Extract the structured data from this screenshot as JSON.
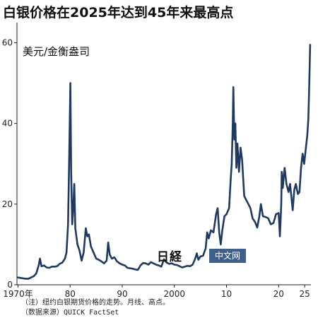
{
  "chart_data": {
    "type": "line",
    "title": "白银价格在2025年达到45年来最高点",
    "ylabel": "美元/金衡盎司",
    "xlabel": "",
    "ylim": [
      0,
      65
    ],
    "xlim": [
      1969.8,
      2026.2
    ],
    "yticks": [
      0,
      20,
      40,
      60
    ],
    "xticks": [
      {
        "value": 1970,
        "label": "1970年"
      },
      {
        "value": 1980,
        "label": "80"
      },
      {
        "value": 1990,
        "label": "90"
      },
      {
        "value": 2000,
        "label": "2000"
      },
      {
        "value": 2010,
        "label": "10"
      },
      {
        "value": 2020,
        "label": "20"
      },
      {
        "value": 2025,
        "label": "25"
      }
    ],
    "grid": false,
    "legend": "none",
    "series": [
      {
        "color": "#1e3a64",
        "points": [
          [
            1970.0,
            1.8
          ],
          [
            1970.5,
            1.7
          ],
          [
            1971.0,
            1.6
          ],
          [
            1971.5,
            1.5
          ],
          [
            1972.0,
            1.5
          ],
          [
            1972.5,
            1.8
          ],
          [
            1973.0,
            2.1
          ],
          [
            1973.5,
            2.8
          ],
          [
            1974.0,
            5.0
          ],
          [
            1974.2,
            6.5
          ],
          [
            1974.5,
            4.6
          ],
          [
            1975.0,
            4.8
          ],
          [
            1975.5,
            4.3
          ],
          [
            1976.0,
            4.2
          ],
          [
            1976.5,
            4.5
          ],
          [
            1977.0,
            4.5
          ],
          [
            1977.5,
            4.6
          ],
          [
            1978.0,
            5.2
          ],
          [
            1978.5,
            5.5
          ],
          [
            1979.0,
            6.5
          ],
          [
            1979.3,
            8.0
          ],
          [
            1979.6,
            15.0
          ],
          [
            1979.8,
            30.0
          ],
          [
            1980.05,
            50.0
          ],
          [
            1980.2,
            28.0
          ],
          [
            1980.4,
            15.0
          ],
          [
            1980.6,
            19.0
          ],
          [
            1980.8,
            25.0
          ],
          [
            1981.0,
            14.0
          ],
          [
            1981.4,
            10.0
          ],
          [
            1981.8,
            8.5
          ],
          [
            1982.2,
            6.0
          ],
          [
            1982.6,
            8.0
          ],
          [
            1983.0,
            14.0
          ],
          [
            1983.3,
            12.0
          ],
          [
            1983.6,
            12.5
          ],
          [
            1984.0,
            9.5
          ],
          [
            1984.5,
            8.0
          ],
          [
            1985.0,
            6.5
          ],
          [
            1985.5,
            6.2
          ],
          [
            1986.0,
            5.8
          ],
          [
            1986.5,
            5.3
          ],
          [
            1987.0,
            6.0
          ],
          [
            1987.3,
            10.5
          ],
          [
            1987.6,
            7.5
          ],
          [
            1988.0,
            6.5
          ],
          [
            1988.5,
            6.8
          ],
          [
            1989.0,
            5.8
          ],
          [
            1989.5,
            5.3
          ],
          [
            1990.0,
            5.0
          ],
          [
            1990.5,
            4.8
          ],
          [
            1991.0,
            4.2
          ],
          [
            1991.5,
            4.1
          ],
          [
            1992.0,
            4.0
          ],
          [
            1992.5,
            3.8
          ],
          [
            1993.0,
            3.7
          ],
          [
            1993.5,
            4.8
          ],
          [
            1994.0,
            5.4
          ],
          [
            1994.5,
            5.3
          ],
          [
            1995.0,
            5.0
          ],
          [
            1995.5,
            5.6
          ],
          [
            1996.0,
            5.3
          ],
          [
            1996.5,
            5.0
          ],
          [
            1997.0,
            4.8
          ],
          [
            1997.5,
            4.5
          ],
          [
            1998.0,
            6.3
          ],
          [
            1998.5,
            5.5
          ],
          [
            1999.0,
            5.2
          ],
          [
            1999.5,
            5.3
          ],
          [
            2000.0,
            5.0
          ],
          [
            2000.5,
            4.9
          ],
          [
            2001.0,
            4.6
          ],
          [
            2001.5,
            4.3
          ],
          [
            2002.0,
            4.5
          ],
          [
            2002.5,
            4.7
          ],
          [
            2003.0,
            4.6
          ],
          [
            2003.5,
            5.0
          ],
          [
            2004.0,
            6.5
          ],
          [
            2004.3,
            7.8
          ],
          [
            2004.6,
            6.2
          ],
          [
            2005.0,
            7.0
          ],
          [
            2005.5,
            7.2
          ],
          [
            2006.0,
            9.0
          ],
          [
            2006.3,
            13.0
          ],
          [
            2006.6,
            11.5
          ],
          [
            2007.0,
            13.5
          ],
          [
            2007.5,
            13.0
          ],
          [
            2008.0,
            17.5
          ],
          [
            2008.3,
            19.0
          ],
          [
            2008.6,
            13.0
          ],
          [
            2008.9,
            10.0
          ],
          [
            2009.2,
            13.5
          ],
          [
            2009.6,
            17.0
          ],
          [
            2010.0,
            17.5
          ],
          [
            2010.5,
            19.0
          ],
          [
            2010.8,
            26.0
          ],
          [
            2011.0,
            30.0
          ],
          [
            2011.2,
            40.0
          ],
          [
            2011.32,
            49.0
          ],
          [
            2011.5,
            36.0
          ],
          [
            2011.7,
            40.0
          ],
          [
            2011.9,
            29.0
          ],
          [
            2012.1,
            35.0
          ],
          [
            2012.4,
            28.0
          ],
          [
            2012.7,
            34.0
          ],
          [
            2013.0,
            31.0
          ],
          [
            2013.4,
            22.0
          ],
          [
            2013.8,
            21.0
          ],
          [
            2014.2,
            20.0
          ],
          [
            2014.6,
            19.0
          ],
          [
            2015.0,
            16.5
          ],
          [
            2015.5,
            15.5
          ],
          [
            2015.9,
            14.2
          ],
          [
            2016.3,
            17.0
          ],
          [
            2016.6,
            20.0
          ],
          [
            2017.0,
            17.0
          ],
          [
            2017.5,
            16.8
          ],
          [
            2018.0,
            16.5
          ],
          [
            2018.5,
            15.0
          ],
          [
            2019.0,
            15.3
          ],
          [
            2019.5,
            17.5
          ],
          [
            2020.0,
            17.8
          ],
          [
            2020.25,
            12.0
          ],
          [
            2020.5,
            20.0
          ],
          [
            2020.6,
            28.0
          ],
          [
            2020.8,
            24.0
          ],
          [
            2021.0,
            27.0
          ],
          [
            2021.15,
            29.0
          ],
          [
            2021.5,
            25.0
          ],
          [
            2021.9,
            23.0
          ],
          [
            2022.2,
            25.0
          ],
          [
            2022.7,
            18.5
          ],
          [
            2023.0,
            23.5
          ],
          [
            2023.3,
            25.0
          ],
          [
            2023.7,
            22.5
          ],
          [
            2024.0,
            23.0
          ],
          [
            2024.3,
            29.0
          ],
          [
            2024.6,
            32.5
          ],
          [
            2024.9,
            30.0
          ],
          [
            2025.2,
            33.5
          ],
          [
            2025.5,
            37.0
          ],
          [
            2025.7,
            41.0
          ],
          [
            2025.85,
            48.0
          ],
          [
            2025.95,
            54.0
          ],
          [
            2026.05,
            59.5
          ]
        ]
      }
    ]
  },
  "notes": {
    "line1": "（注）纽约白银期货价格的走势。月线、高点。",
    "line2": "（数据来源）QUICK FactSet"
  },
  "watermark": {
    "logo_text": "日経",
    "badge_text": "中文网",
    "badge_color": "#3c5f8c"
  }
}
